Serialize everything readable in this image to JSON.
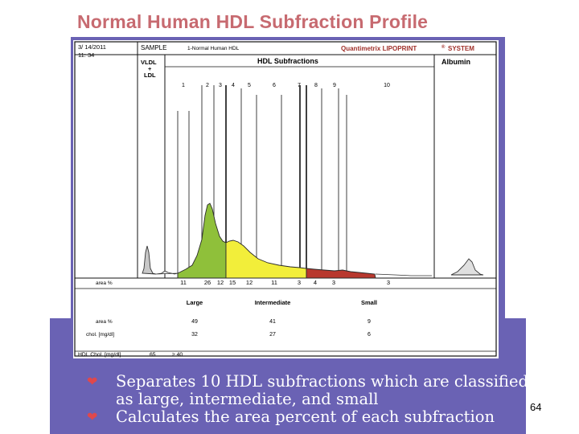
{
  "slide": {
    "title": "Normal Human HDL Subfraction Profile",
    "page_number": "64",
    "bullets": [
      "Separates 10 HDL subfractions which are classified as large, intermediate, and small",
      "Calculates the area percent of each subfraction"
    ],
    "colors": {
      "title": "#c76a70",
      "band": "#6a62b4",
      "bullet_mark": "#e0484c",
      "large": "#8fc03a",
      "intermediate": "#f2ee3a",
      "small": "#b8382e",
      "vldl": "#c8c8c8"
    }
  },
  "report": {
    "date": "3/ 14/2011",
    "time": "11: 34",
    "sample_label": "SAMPLE",
    "sample_name": "1-Normal Human HDL",
    "system": "Quantimetrix LIPOPRINT",
    "system_mark": "®",
    "system_suffix": "SYSTEM",
    "vldl_label_1": "VLDL",
    "vldl_label_2": "+",
    "vldl_label_3": "LDL",
    "hdl_header": "HDL Subfractions",
    "albumin_header": "Albumin",
    "area_label": "area %",
    "chol_label": "chol. [mg/dl]",
    "hdl_chol_label": "HDL Chol. [mg/dl]",
    "hdl_chol_value": "65",
    "hdl_chol_range": "≥ 40",
    "groups": [
      "Large",
      "Intermediate",
      "Small"
    ],
    "group_area": [
      "49",
      "41",
      "9"
    ],
    "group_chol": [
      "32",
      "27",
      "6"
    ]
  },
  "chart_data": {
    "type": "area",
    "subfraction_numbers": [
      "1",
      "2",
      "3",
      "4",
      "5",
      "6",
      "7",
      "8",
      "9",
      "10"
    ],
    "subfraction_area_percent": [
      "11",
      "26",
      "12",
      "15",
      "12",
      "11",
      "3",
      "4",
      "3",
      "3"
    ],
    "bands": [
      {
        "name": "Large",
        "subfractions": [
          "1",
          "2",
          "3"
        ],
        "area_percent": 49
      },
      {
        "name": "Intermediate",
        "subfractions": [
          "4",
          "5",
          "6",
          "7"
        ],
        "area_percent": 41
      },
      {
        "name": "Small",
        "subfractions": [
          "8",
          "9",
          "10"
        ],
        "area_percent": 9
      }
    ],
    "grid": false
  }
}
